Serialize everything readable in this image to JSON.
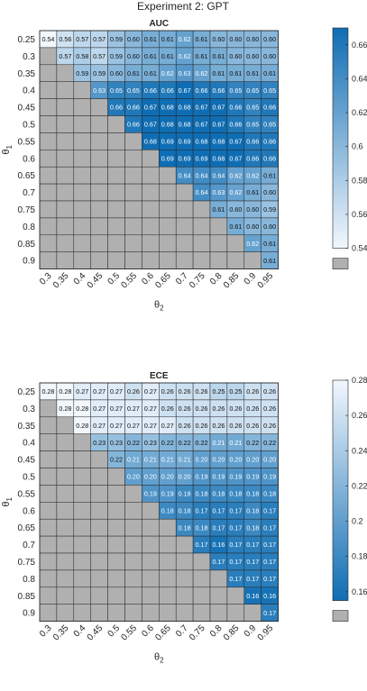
{
  "figure_title": "Experiment 2: GPT",
  "chart_data": [
    {
      "type": "heatmap",
      "title": "AUC",
      "xlabel": "θ2",
      "ylabel": "θ1",
      "x_categories": [
        "0.3",
        "0.35",
        "0.4",
        "0.45",
        "0.5",
        "0.55",
        "0.6",
        "0.65",
        "0.7",
        "0.75",
        "0.8",
        "0.85",
        "0.9",
        "0.95"
      ],
      "y_categories": [
        "0.25",
        "0.3",
        "0.35",
        "0.4",
        "0.45",
        "0.5",
        "0.55",
        "0.6",
        "0.65",
        "0.7",
        "0.75",
        "0.8",
        "0.85",
        "0.9"
      ],
      "values": [
        [
          0.54,
          0.56,
          0.57,
          0.57,
          0.59,
          0.6,
          0.61,
          0.61,
          0.62,
          0.61,
          0.6,
          0.6,
          0.6,
          0.6
        ],
        [
          null,
          0.57,
          0.58,
          0.57,
          0.59,
          0.6,
          0.61,
          0.61,
          0.62,
          0.61,
          0.61,
          0.6,
          0.6,
          0.6
        ],
        [
          null,
          null,
          0.59,
          0.59,
          0.6,
          0.61,
          0.61,
          0.62,
          0.63,
          0.62,
          0.61,
          0.61,
          0.61,
          0.61
        ],
        [
          null,
          null,
          null,
          0.63,
          0.65,
          0.65,
          0.66,
          0.66,
          0.67,
          0.66,
          0.66,
          0.65,
          0.65,
          0.65
        ],
        [
          null,
          null,
          null,
          null,
          0.66,
          0.66,
          0.67,
          0.68,
          0.68,
          0.67,
          0.67,
          0.66,
          0.65,
          0.66
        ],
        [
          null,
          null,
          null,
          null,
          null,
          0.66,
          0.67,
          0.68,
          0.68,
          0.67,
          0.67,
          0.66,
          0.65,
          0.65
        ],
        [
          null,
          null,
          null,
          null,
          null,
          null,
          0.68,
          0.69,
          0.69,
          0.68,
          0.68,
          0.67,
          0.66,
          0.66
        ],
        [
          null,
          null,
          null,
          null,
          null,
          null,
          null,
          0.69,
          0.69,
          0.69,
          0.68,
          0.67,
          0.66,
          0.66
        ],
        [
          null,
          null,
          null,
          null,
          null,
          null,
          null,
          null,
          0.64,
          0.64,
          0.64,
          0.62,
          0.62,
          0.61
        ],
        [
          null,
          null,
          null,
          null,
          null,
          null,
          null,
          null,
          null,
          0.64,
          0.63,
          0.62,
          0.61,
          0.6
        ],
        [
          null,
          null,
          null,
          null,
          null,
          null,
          null,
          null,
          null,
          null,
          0.61,
          0.6,
          0.6,
          0.59
        ],
        [
          null,
          null,
          null,
          null,
          null,
          null,
          null,
          null,
          null,
          null,
          null,
          0.61,
          0.6,
          0.6
        ],
        [
          null,
          null,
          null,
          null,
          null,
          null,
          null,
          null,
          null,
          null,
          null,
          null,
          0.62,
          0.61
        ],
        [
          null,
          null,
          null,
          null,
          null,
          null,
          null,
          null,
          null,
          null,
          null,
          null,
          null,
          0.61
        ]
      ],
      "colorbar": {
        "range": [
          0.54,
          0.67
        ],
        "ticks": [
          "0.54",
          "0.56",
          "0.58",
          "0.6",
          "0.62",
          "0.64",
          "0.66"
        ],
        "direction": "higher-darker"
      },
      "colors": {
        "low": "#f2f7fd",
        "high": "#0f6db3",
        "missing": "#b0b0b0"
      }
    },
    {
      "type": "heatmap",
      "title": "ECE",
      "xlabel": "θ2",
      "ylabel": "θ1",
      "x_categories": [
        "0.3",
        "0.35",
        "0.4",
        "0.45",
        "0.5",
        "0.55",
        "0.6",
        "0.65",
        "0.7",
        "0.75",
        "0.8",
        "0.85",
        "0.9",
        "0.95"
      ],
      "y_categories": [
        "0.25",
        "0.3",
        "0.35",
        "0.4",
        "0.45",
        "0.5",
        "0.55",
        "0.6",
        "0.65",
        "0.7",
        "0.75",
        "0.8",
        "0.85",
        "0.9"
      ],
      "values": [
        [
          0.28,
          0.28,
          0.27,
          0.27,
          0.27,
          0.26,
          0.27,
          0.26,
          0.26,
          0.26,
          0.25,
          0.25,
          0.26,
          0.26
        ],
        [
          null,
          0.28,
          0.28,
          0.27,
          0.27,
          0.27,
          0.27,
          0.26,
          0.26,
          0.26,
          0.26,
          0.26,
          0.26,
          0.26
        ],
        [
          null,
          null,
          0.28,
          0.27,
          0.27,
          0.27,
          0.27,
          0.27,
          0.26,
          0.26,
          0.26,
          0.26,
          0.26,
          0.26
        ],
        [
          null,
          null,
          null,
          0.23,
          0.23,
          0.22,
          0.23,
          0.22,
          0.22,
          0.22,
          0.21,
          0.21,
          0.22,
          0.22
        ],
        [
          null,
          null,
          null,
          null,
          0.22,
          0.21,
          0.21,
          0.21,
          0.21,
          0.2,
          0.2,
          0.2,
          0.2,
          0.2
        ],
        [
          null,
          null,
          null,
          null,
          null,
          0.2,
          0.2,
          0.2,
          0.2,
          0.19,
          0.19,
          0.19,
          0.19,
          0.19
        ],
        [
          null,
          null,
          null,
          null,
          null,
          null,
          0.19,
          0.19,
          0.18,
          0.18,
          0.18,
          0.18,
          0.18,
          0.18
        ],
        [
          null,
          null,
          null,
          null,
          null,
          null,
          null,
          0.18,
          0.18,
          0.17,
          0.17,
          0.17,
          0.18,
          0.17
        ],
        [
          null,
          null,
          null,
          null,
          null,
          null,
          null,
          null,
          0.18,
          0.18,
          0.17,
          0.17,
          0.18,
          0.17
        ],
        [
          null,
          null,
          null,
          null,
          null,
          null,
          null,
          null,
          null,
          0.17,
          0.16,
          0.17,
          0.17,
          0.17
        ],
        [
          null,
          null,
          null,
          null,
          null,
          null,
          null,
          null,
          null,
          null,
          0.17,
          0.17,
          0.17,
          0.17
        ],
        [
          null,
          null,
          null,
          null,
          null,
          null,
          null,
          null,
          null,
          null,
          null,
          0.17,
          0.17,
          0.17
        ],
        [
          null,
          null,
          null,
          null,
          null,
          null,
          null,
          null,
          null,
          null,
          null,
          null,
          0.16,
          0.16
        ],
        [
          null,
          null,
          null,
          null,
          null,
          null,
          null,
          null,
          null,
          null,
          null,
          null,
          null,
          0.17
        ]
      ],
      "colorbar": {
        "range": [
          0.155,
          0.28
        ],
        "ticks": [
          "0.16",
          "0.18",
          "0.2",
          "0.22",
          "0.24",
          "0.26",
          "0.28"
        ],
        "direction": "lower-darker"
      },
      "colors": {
        "low": "#f2f7fd",
        "high": "#0f6db3",
        "missing": "#b0b0b0"
      }
    }
  ]
}
